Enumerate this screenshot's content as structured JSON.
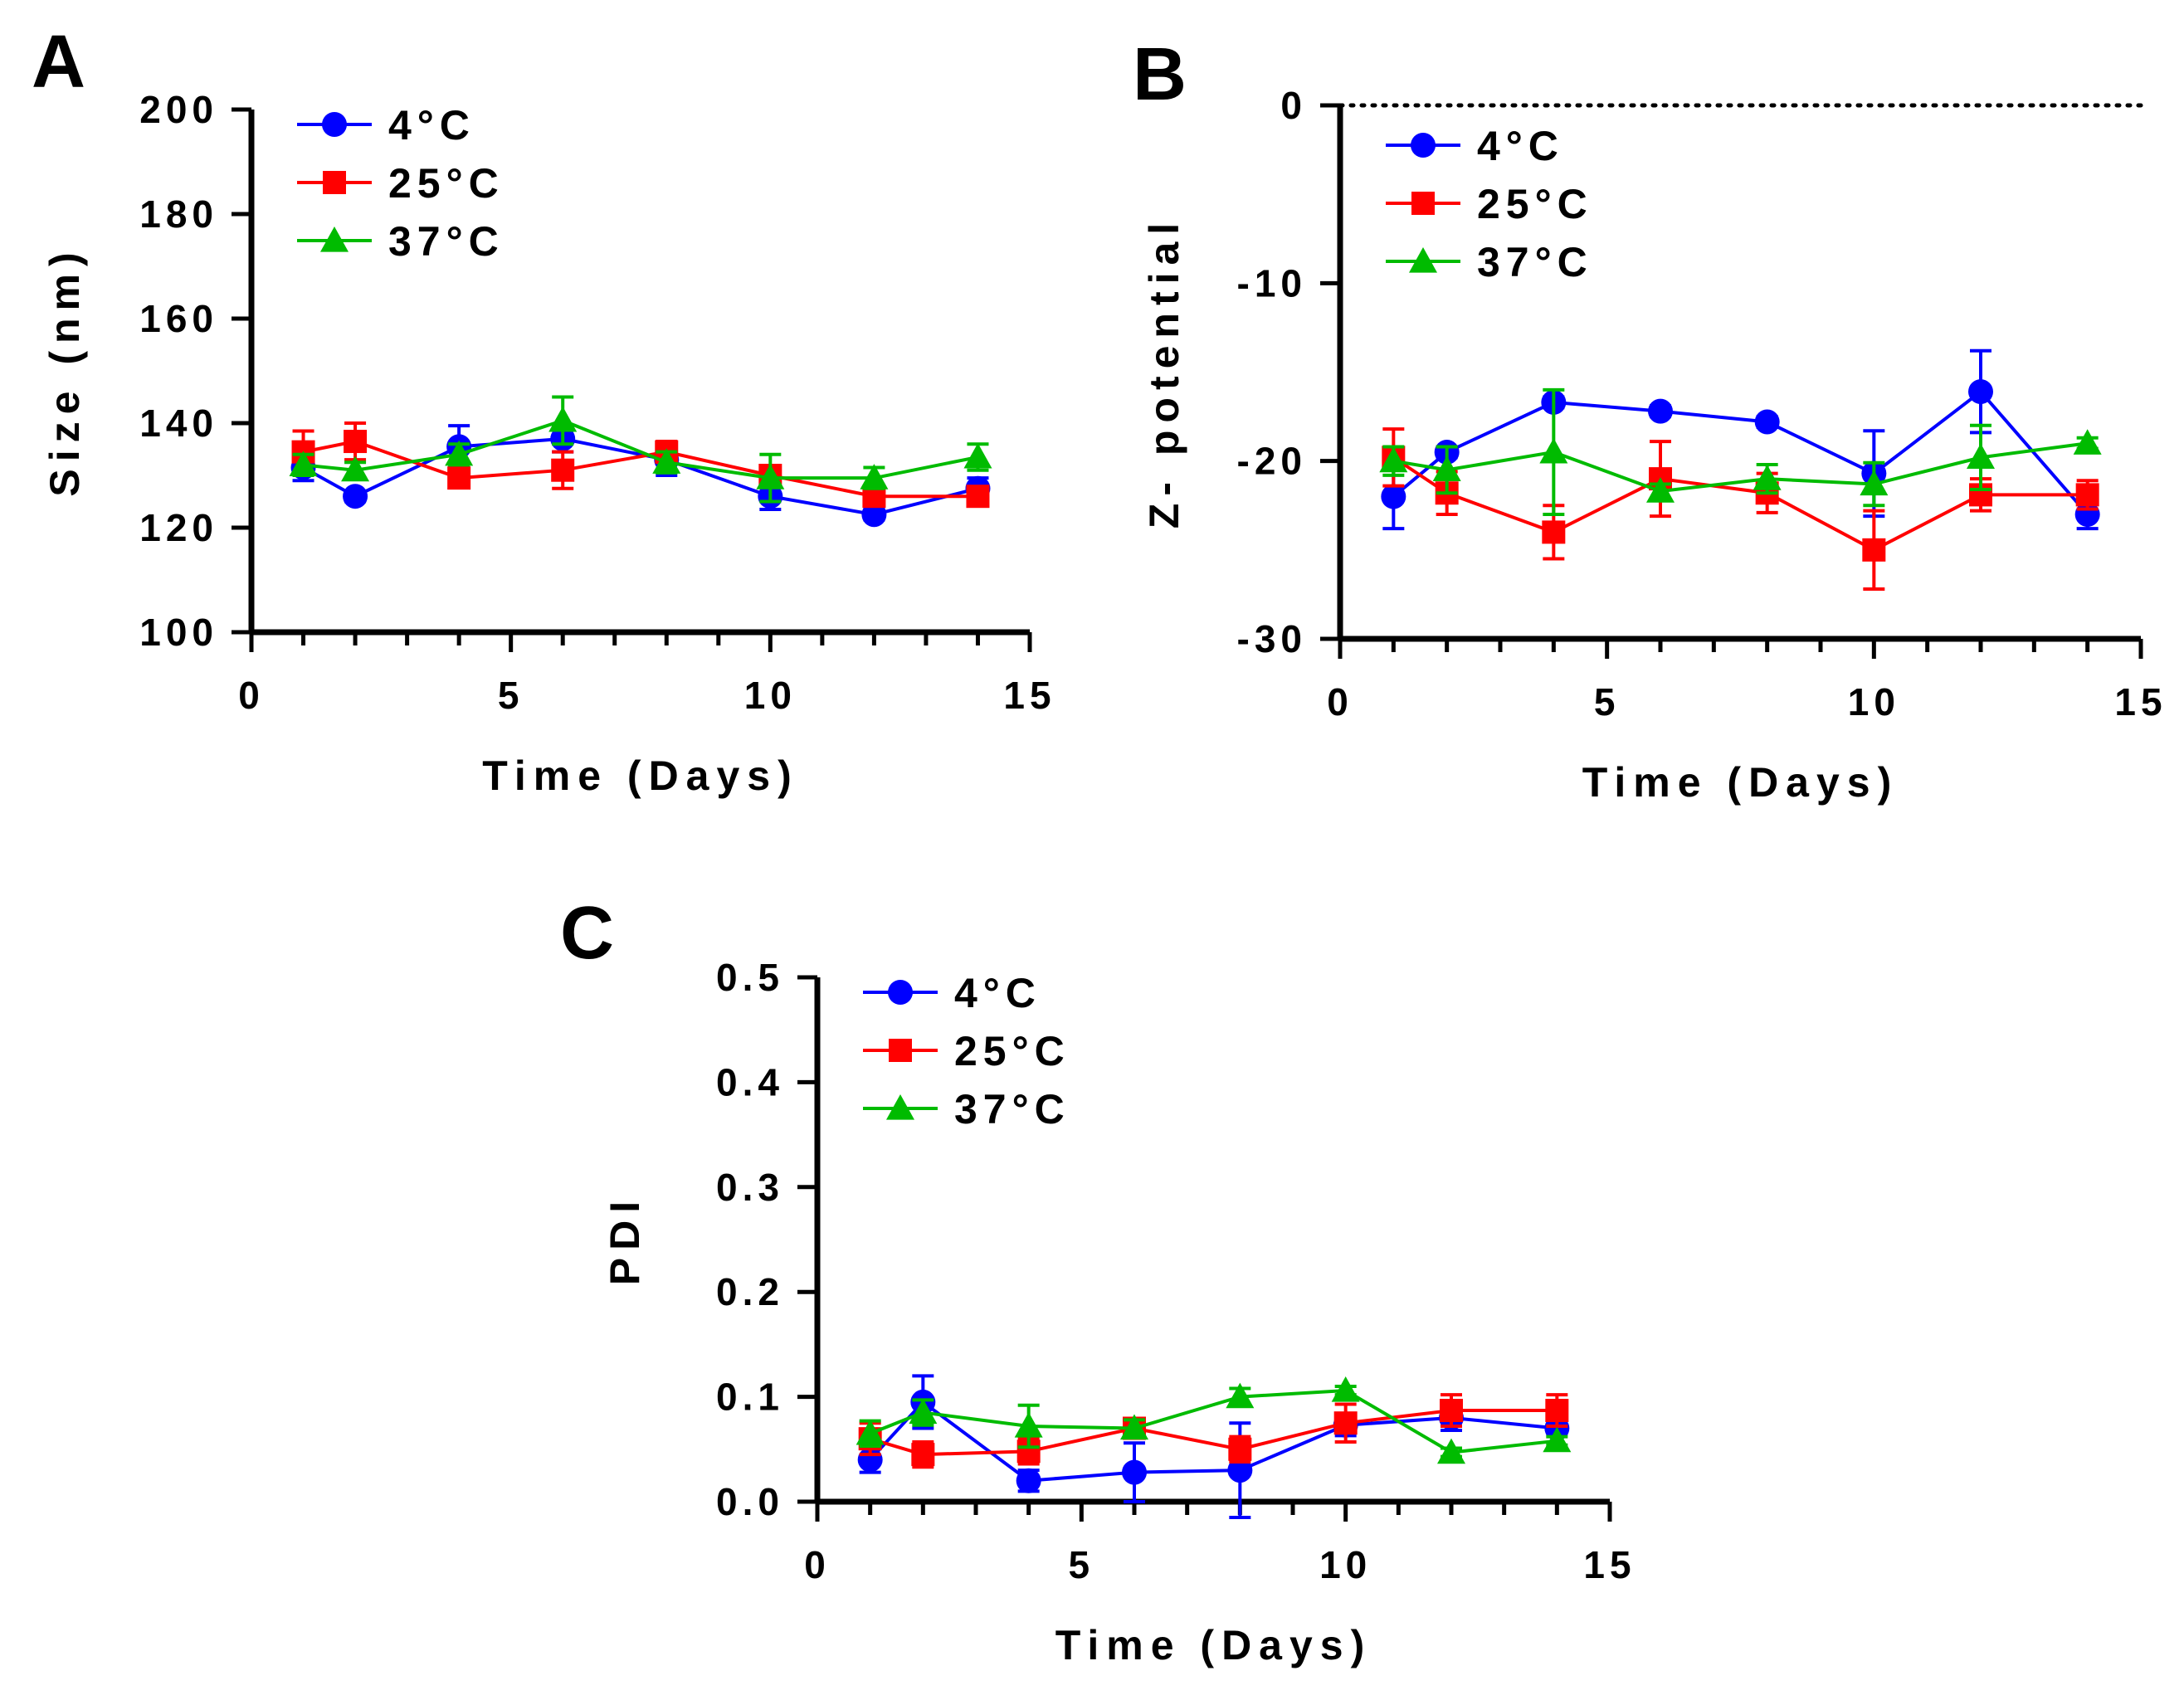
{
  "figure": {
    "background": "#ffffff"
  },
  "chart_data": [
    {
      "panel": "A",
      "type": "line",
      "xlabel": "Time (Days)",
      "ylabel": "Size (nm)",
      "xlim": [
        0,
        15
      ],
      "ylim": [
        100,
        200
      ],
      "xticks": [
        0,
        5,
        10,
        15
      ],
      "yticks": [
        100,
        120,
        140,
        160,
        180,
        200
      ],
      "x_tick_labels": [
        "0",
        "5",
        "10",
        "15"
      ],
      "y_tick_labels": [
        "100",
        "120",
        "140",
        "160",
        "180",
        "200"
      ],
      "x": [
        1,
        2,
        4,
        6,
        8,
        10,
        12,
        14
      ],
      "grid": false,
      "legend": "top-left",
      "series": [
        {
          "name": "4°C",
          "color": "#0000ff",
          "marker": "circle",
          "values": [
            131.5,
            126,
            135.5,
            137,
            133,
            126,
            122.5,
            127.5
          ],
          "errors": [
            2.5,
            1,
            4,
            2.5,
            3,
            2.5,
            1,
            2
          ]
        },
        {
          "name": "25°C",
          "color": "#ff0000",
          "marker": "square",
          "values": [
            134.5,
            136.5,
            129.5,
            131,
            134.5,
            130,
            126,
            126
          ],
          "errors": [
            4,
            3.5,
            1.5,
            3.5,
            2,
            1.5,
            1,
            1.5
          ]
        },
        {
          "name": "37°C",
          "color": "#00bb00",
          "marker": "triangle",
          "values": [
            132,
            131,
            134,
            140.5,
            132.5,
            129.5,
            129.5,
            133.5
          ],
          "errors": [
            2,
            1.5,
            2,
            4.5,
            2,
            4.5,
            2,
            2.5
          ]
        }
      ]
    },
    {
      "panel": "B",
      "type": "line",
      "xlabel": "Time (Days)",
      "ylabel": "Z- potential",
      "xlim": [
        0,
        15
      ],
      "ylim": [
        -30,
        0
      ],
      "xticks": [
        0,
        5,
        10,
        15
      ],
      "yticks": [
        -30,
        -20,
        -10,
        0
      ],
      "x_tick_labels": [
        "0",
        "5",
        "10",
        "15"
      ],
      "y_tick_labels": [
        "-30",
        "-20",
        "-10",
        "0"
      ],
      "reference_line": 0,
      "x": [
        1,
        2,
        4,
        6,
        8,
        10,
        12,
        14
      ],
      "grid": false,
      "legend": "top-left",
      "series": [
        {
          "name": "4°C",
          "color": "#0000ff",
          "marker": "circle",
          "values": [
            -22,
            -19.5,
            -16.7,
            -17.2,
            -17.8,
            -20.7,
            -16.1,
            -23
          ],
          "errors": [
            1.8,
            0.3,
            0.3,
            0.3,
            0.3,
            2.4,
            2.3,
            0.8
          ]
        },
        {
          "name": "25°C",
          "color": "#ff0000",
          "marker": "square",
          "values": [
            -19.8,
            -21.8,
            -24,
            -21,
            -21.8,
            -25,
            -21.9,
            -21.9
          ],
          "errors": [
            1.6,
            1.2,
            1.5,
            2.1,
            1.1,
            2.2,
            0.9,
            0.8
          ]
        },
        {
          "name": "37°C",
          "color": "#00bb00",
          "marker": "triangle",
          "values": [
            -20,
            -20.5,
            -19.5,
            -21.7,
            -21,
            -21.3,
            -19.8,
            -19
          ],
          "errors": [
            0.8,
            1.3,
            3.5,
            0.4,
            0.8,
            1.2,
            1.8,
            0.3
          ]
        }
      ]
    },
    {
      "panel": "C",
      "type": "line",
      "xlabel": "Time (Days)",
      "ylabel": "PDI",
      "xlim": [
        0,
        15
      ],
      "ylim": [
        0,
        0.5
      ],
      "xticks": [
        0,
        5,
        10,
        15
      ],
      "yticks": [
        0,
        0.1,
        0.2,
        0.3,
        0.4,
        0.5
      ],
      "x_tick_labels": [
        "0",
        "5",
        "10",
        "15"
      ],
      "y_tick_labels": [
        "0.0",
        "0.1",
        "0.2",
        "0.3",
        "0.4",
        "0.5"
      ],
      "x": [
        1,
        2,
        4,
        6,
        8,
        10,
        12,
        14
      ],
      "grid": false,
      "legend": "top-left",
      "series": [
        {
          "name": "4°C",
          "color": "#0000ff",
          "marker": "circle",
          "values": [
            0.04,
            0.095,
            0.02,
            0.028,
            0.03,
            0.073,
            0.08,
            0.07
          ],
          "errors": [
            0.012,
            0.025,
            0.01,
            0.028,
            0.045,
            0.01,
            0.012,
            0.005
          ]
        },
        {
          "name": "25°C",
          "color": "#ff0000",
          "marker": "square",
          "values": [
            0.06,
            0.045,
            0.048,
            0.07,
            0.05,
            0.075,
            0.087,
            0.087
          ],
          "errors": [
            0.015,
            0.012,
            0.012,
            0.008,
            0.012,
            0.018,
            0.015,
            0.015
          ]
        },
        {
          "name": "37°C",
          "color": "#00bb00",
          "marker": "triangle",
          "values": [
            0.065,
            0.085,
            0.072,
            0.07,
            0.1,
            0.106,
            0.047,
            0.058
          ],
          "errors": [
            0.012,
            0.012,
            0.02,
            0.008,
            0.008,
            0.004,
            0.004,
            0.004
          ]
        }
      ]
    }
  ]
}
